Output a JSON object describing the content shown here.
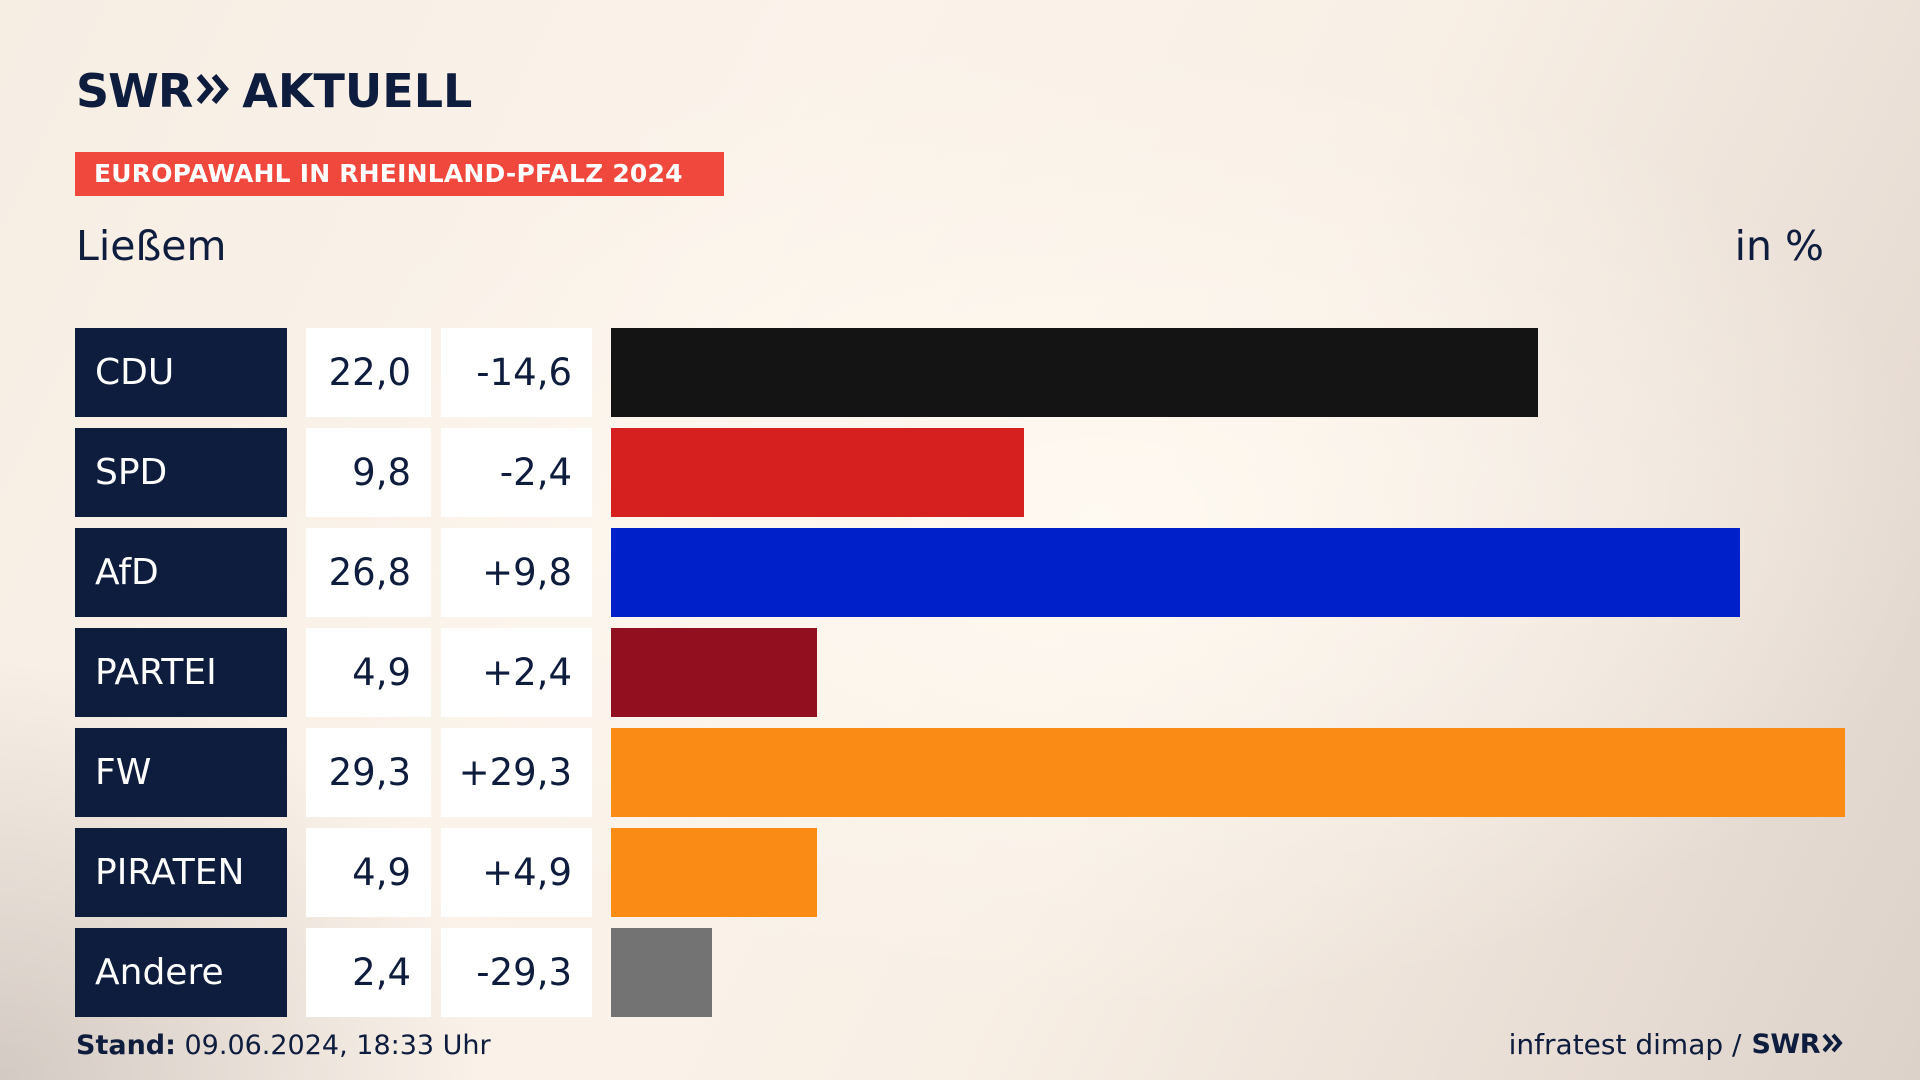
{
  "header": {
    "logo_swr": "SWR",
    "logo_aktuell": "AKTUELL",
    "banner": "EUROPAWAHL IN RHEINLAND-PFALZ 2024",
    "place": "Ließem",
    "unit": "in %"
  },
  "colors": {
    "navy": "#0e1d3d",
    "banner": "#f0483c"
  },
  "chart_data": {
    "type": "bar",
    "orientation": "horizontal",
    "unit": "in %",
    "categories": [
      "CDU",
      "SPD",
      "AfD",
      "PARTEI",
      "FW",
      "PIRATEN",
      "Andere"
    ],
    "values": [
      22.0,
      9.8,
      26.8,
      4.9,
      29.3,
      4.9,
      2.4
    ],
    "value_labels": [
      "22,0",
      "9,8",
      "26,8",
      "4,9",
      "29,3",
      "4,9",
      "2,4"
    ],
    "diff_labels": [
      "-14,6",
      "-2,4",
      "+9,8",
      "+2,4",
      "+29,3",
      "+4,9",
      "-29,3"
    ],
    "bar_colors": [
      "#141414",
      "#d61f1f",
      "#0021c9",
      "#920f20",
      "#fa8c16",
      "#fa8c16",
      "#737373"
    ],
    "xlim": [
      0,
      29.3
    ]
  },
  "footer": {
    "stand_label": "Stand:",
    "stand_value": " 09.06.2024, 18:33 Uhr",
    "source": "infratest dimap /",
    "source_logo": "SWR"
  }
}
